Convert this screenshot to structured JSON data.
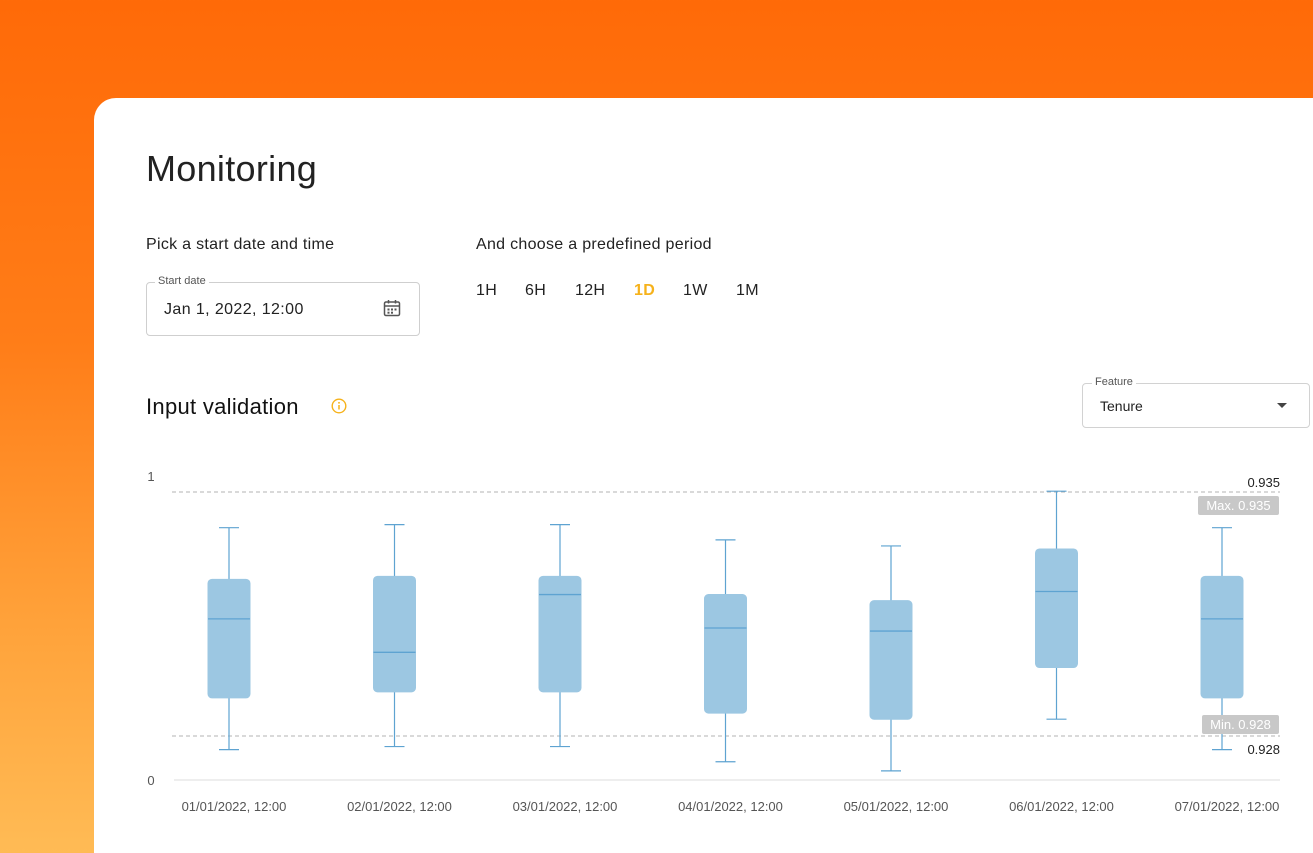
{
  "page": {
    "title": "Monitoring"
  },
  "start": {
    "label": "Pick a start date and time",
    "field_label": "Start date",
    "value": "Jan 1, 2022, 12:00",
    "icon": "calendar-icon"
  },
  "period": {
    "label": "And choose a predefined period",
    "options": [
      "1H",
      "6H",
      "12H",
      "1D",
      "1W",
      "1M"
    ],
    "selected": "1D"
  },
  "section": {
    "title": "Input validation",
    "info_icon": "info-icon"
  },
  "feature": {
    "label": "Feature",
    "value": "Tenure"
  },
  "colors": {
    "accent": "#f6b21b",
    "box_fill": "#9cc7e2",
    "box_stroke": "#5ea3d1",
    "threshold_badge": "#c8c8c8"
  },
  "chart_data": {
    "type": "boxplot",
    "y_tick_labels": [
      "1",
      "0"
    ],
    "categories": [
      "01/01/2022, 12:00",
      "02/01/2022, 12:00",
      "03/01/2022, 12:00",
      "04/01/2022, 12:00",
      "05/01/2022, 12:00",
      "06/01/2022, 12:00",
      "07/01/2022, 12:00"
    ],
    "boxes": [
      {
        "min": 0.1,
        "q1": 0.27,
        "median": 0.53,
        "q3": 0.66,
        "max": 0.83
      },
      {
        "min": 0.11,
        "q1": 0.29,
        "median": 0.42,
        "q3": 0.67,
        "max": 0.84
      },
      {
        "min": 0.11,
        "q1": 0.29,
        "median": 0.61,
        "q3": 0.67,
        "max": 0.84
      },
      {
        "min": 0.06,
        "q1": 0.22,
        "median": 0.5,
        "q3": 0.61,
        "max": 0.79
      },
      {
        "min": 0.03,
        "q1": 0.2,
        "median": 0.49,
        "q3": 0.59,
        "max": 0.77
      },
      {
        "min": 0.2,
        "q1": 0.37,
        "median": 0.62,
        "q3": 0.76,
        "max": 0.95
      },
      {
        "min": 0.1,
        "q1": 0.27,
        "median": 0.53,
        "q3": 0.67,
        "max": 0.83
      }
    ],
    "thresholds": {
      "max": {
        "value_label": "0.935",
        "badge": "Max. 0.935"
      },
      "min": {
        "value_label": "0.928",
        "badge": "Min. 0.928"
      }
    }
  }
}
